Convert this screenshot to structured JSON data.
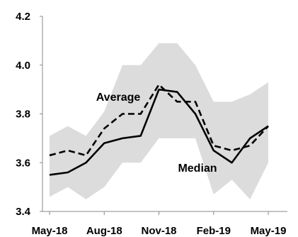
{
  "chart_data": {
    "type": "line",
    "title": "",
    "xlabel": "",
    "ylabel": "",
    "x_tick_labels": [
      "May-18",
      "Aug-18",
      "Nov-18",
      "Feb-19",
      "May-19"
    ],
    "y_tick_labels": [
      "3.4",
      "3.6",
      "3.8",
      "4.0",
      "4.2"
    ],
    "ylim": [
      3.4,
      4.2
    ],
    "x": [
      "May-18",
      "Jun-18",
      "Jul-18",
      "Aug-18",
      "Sep-18",
      "Oct-18",
      "Nov-18",
      "Dec-18",
      "Jan-19",
      "Feb-19",
      "Mar-19",
      "Apr-19",
      "May-19"
    ],
    "series": [
      {
        "name": "Median",
        "style": "solid",
        "color": "#000000",
        "values": [
          3.55,
          3.56,
          3.6,
          3.68,
          3.7,
          3.71,
          3.9,
          3.89,
          3.8,
          3.65,
          3.6,
          3.7,
          3.75
        ]
      },
      {
        "name": "Average",
        "style": "dashed",
        "color": "#000000",
        "values": [
          3.63,
          3.65,
          3.63,
          3.74,
          3.8,
          3.8,
          3.92,
          3.85,
          3.85,
          3.67,
          3.65,
          3.67,
          3.75
        ]
      }
    ],
    "range_band": {
      "color": "#dcdcdc",
      "upper": [
        3.71,
        3.75,
        3.71,
        3.81,
        4.0,
        4.0,
        4.09,
        4.09,
        4.0,
        3.85,
        3.85,
        3.88,
        3.93
      ],
      "lower": [
        3.46,
        3.5,
        3.45,
        3.5,
        3.6,
        3.6,
        3.7,
        3.7,
        3.7,
        3.47,
        3.53,
        3.45,
        3.6
      ]
    },
    "grid": false,
    "legend": "none"
  }
}
